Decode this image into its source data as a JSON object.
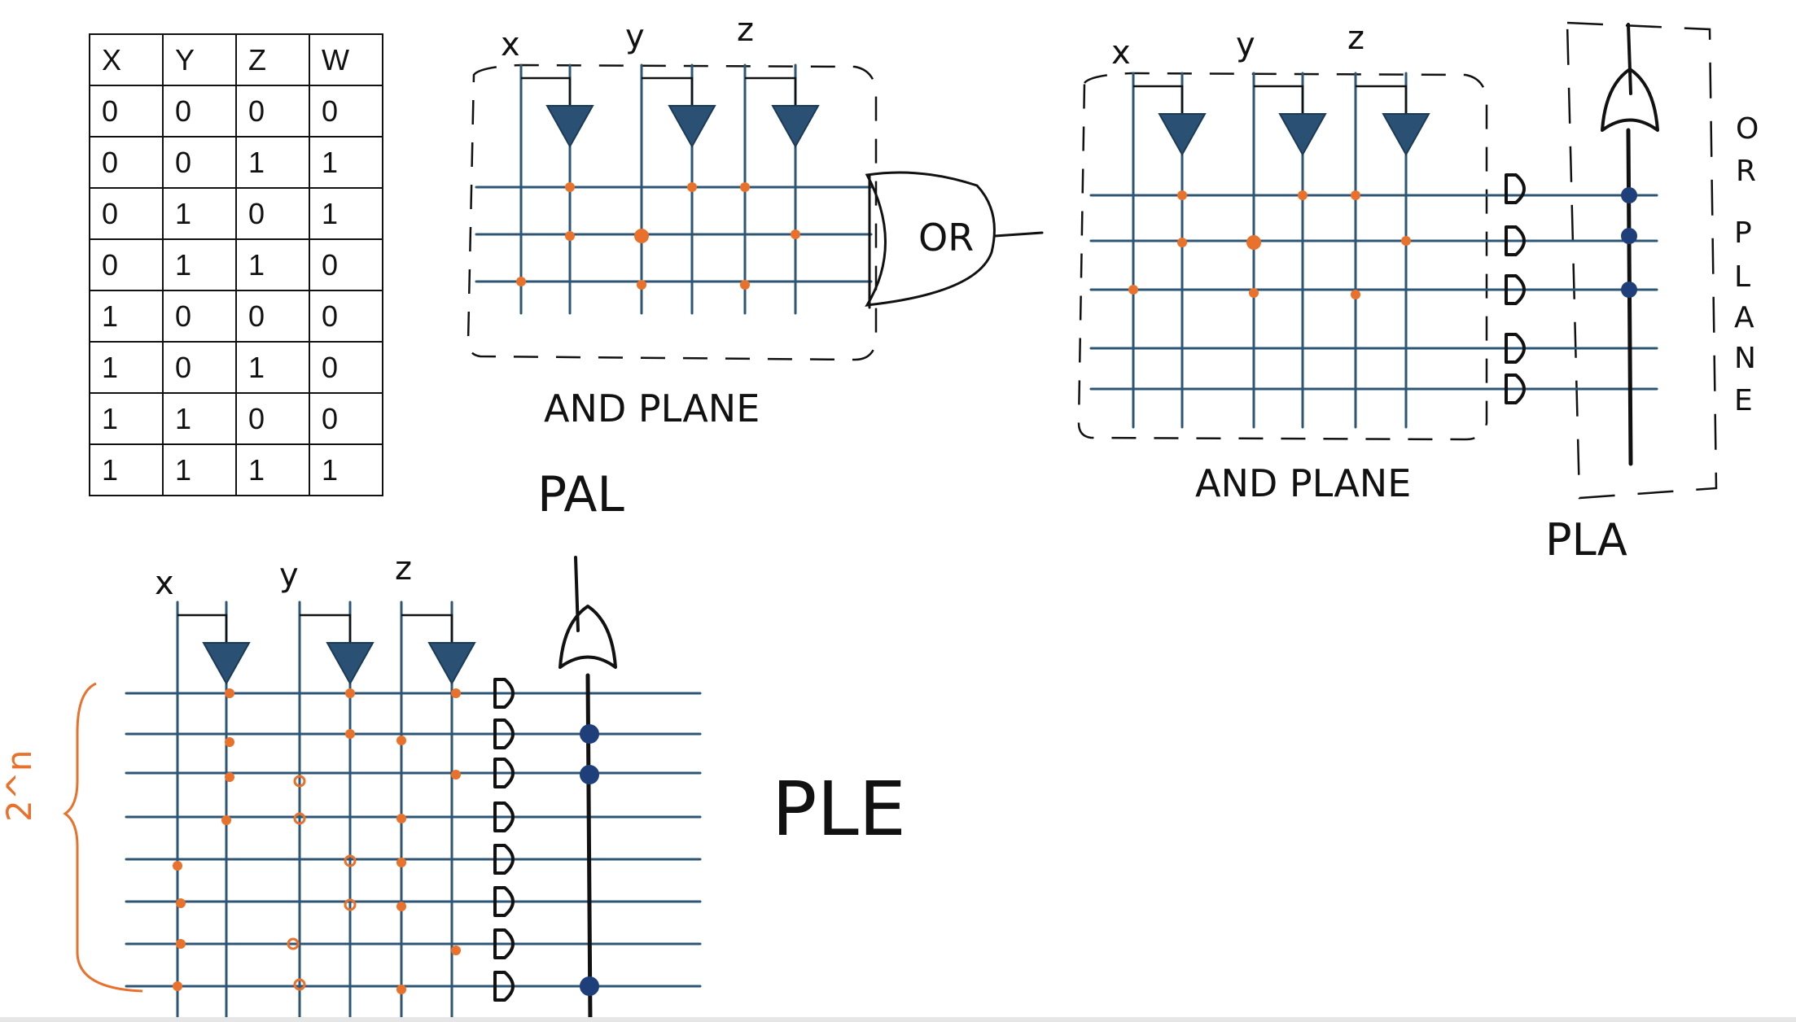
{
  "truth_table": {
    "headers": [
      "X",
      "Y",
      "Z",
      "W"
    ],
    "rows": [
      [
        "0",
        "0",
        "0",
        "0"
      ],
      [
        "0",
        "0",
        "1",
        "1"
      ],
      [
        "0",
        "1",
        "0",
        "1"
      ],
      [
        "0",
        "1",
        "1",
        "0"
      ],
      [
        "1",
        "0",
        "0",
        "0"
      ],
      [
        "1",
        "0",
        "1",
        "0"
      ],
      [
        "1",
        "1",
        "0",
        "0"
      ],
      [
        "1",
        "1",
        "1",
        "1"
      ]
    ]
  },
  "pal": {
    "inputs": [
      "x",
      "y",
      "z"
    ],
    "or_label": "OR",
    "plane_label": "AND PLANE",
    "title": "PAL"
  },
  "pla": {
    "inputs": [
      "x",
      "y",
      "z"
    ],
    "plane_label": "AND PLANE",
    "or_plane_letters": [
      "O",
      "R",
      "P",
      "L",
      "A",
      "N",
      "E"
    ],
    "title": "PLA"
  },
  "ple": {
    "inputs": [
      "x",
      "y",
      "z"
    ],
    "brace_label": "2^n",
    "title": "PLE"
  },
  "colors": {
    "wire": "#2c5576",
    "buffer_fill": "#2a5173",
    "connection": "#e8712c",
    "or_dot": "#1e3f7a",
    "ink": "#111111"
  }
}
